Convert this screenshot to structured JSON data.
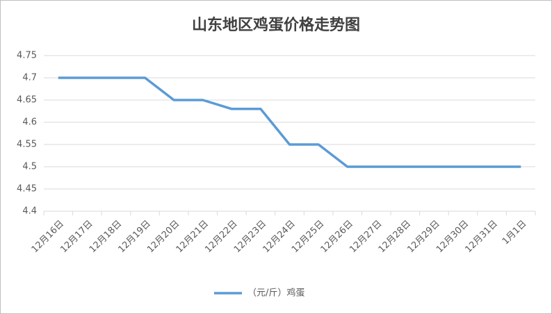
{
  "chart_data": {
    "type": "line",
    "title": "山东地区鸡蛋价格走势图",
    "categories": [
      "12月16日",
      "12月17日",
      "12月18日",
      "12月19日",
      "12月20日",
      "12月21日",
      "12月22日",
      "12月23日",
      "12月24日",
      "12月25日",
      "12月26日",
      "12月27日",
      "12月28日",
      "12月29日",
      "12月30日",
      "12月31日",
      "1月1日"
    ],
    "series": [
      {
        "name": "（元/斤）鸡蛋",
        "color": "#5b9bd5",
        "values": [
          4.7,
          4.7,
          4.7,
          4.7,
          4.65,
          4.65,
          4.63,
          4.63,
          4.55,
          4.55,
          4.5,
          4.5,
          4.5,
          4.5,
          4.5,
          4.5,
          4.5
        ]
      }
    ],
    "ylim": [
      4.4,
      4.75
    ],
    "yticks": [
      4.4,
      4.45,
      4.5,
      4.55,
      4.6,
      4.65,
      4.7,
      4.75
    ],
    "grid": true,
    "legend": "bottom"
  }
}
